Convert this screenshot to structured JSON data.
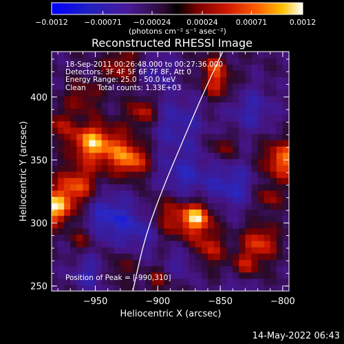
{
  "chart_data": {
    "type": "heatmap",
    "title": "Reconstructed RHESSI Image",
    "xlabel": "Heliocentric X (arcsec)",
    "ylabel": "Heliocentric Y (arcsec)",
    "xlim": [
      -985,
      -795
    ],
    "ylim": [
      246,
      436
    ],
    "x_ticks": [
      -950,
      -900,
      -850,
      -800
    ],
    "y_ticks": [
      250,
      300,
      350,
      400
    ],
    "colorbar": {
      "ticks": [
        "-0.0012",
        "-0.00071",
        "-0.00024",
        "0.00024",
        "0.00071",
        "0.0012"
      ],
      "tick_values": [
        -0.0012,
        -0.00071,
        -0.00024,
        0.00024,
        0.00071,
        0.0012
      ],
      "label": "(photons cm⁻² s⁻¹ asec⁻²)",
      "range": [
        -0.0012,
        0.0012
      ]
    },
    "annotations": [
      "18-Sep-2011 00:26:48.000 to 00:27:36.000",
      "Detectors: 3F 4F 5F 6F 7F 8F, Att 0",
      "Energy Range: 25.0 - 50.0 keV",
      "Clean     Total counts: 1.33E+03"
    ],
    "peak_label": "Position of Peak = [-990,310]",
    "peak_position": [
      -990,
      310
    ],
    "limb_curve": [
      [
        -920,
        246
      ],
      [
        -910,
        290
      ],
      [
        -895,
        330
      ],
      [
        -880,
        365
      ],
      [
        -865,
        400
      ],
      [
        -848,
        436
      ]
    ],
    "blobs": [
      {
        "x": -982,
        "y": 312,
        "r": 14,
        "v": 0.0012
      },
      {
        "x": -965,
        "y": 330,
        "r": 16,
        "v": 0.0009
      },
      {
        "x": -957,
        "y": 365,
        "r": 14,
        "v": 0.00085
      },
      {
        "x": -940,
        "y": 360,
        "r": 18,
        "v": 0.0008
      },
      {
        "x": -920,
        "y": 350,
        "r": 14,
        "v": 0.0009
      },
      {
        "x": -912,
        "y": 388,
        "r": 12,
        "v": 0.00075
      },
      {
        "x": -930,
        "y": 425,
        "r": 14,
        "v": 0.0006
      },
      {
        "x": -960,
        "y": 400,
        "r": 14,
        "v": 0.0005
      },
      {
        "x": -980,
        "y": 378,
        "r": 12,
        "v": 0.00055
      },
      {
        "x": -890,
        "y": 305,
        "r": 20,
        "v": 0.0008
      },
      {
        "x": -868,
        "y": 305,
        "r": 12,
        "v": 0.0011
      },
      {
        "x": -860,
        "y": 280,
        "r": 14,
        "v": 0.0007
      },
      {
        "x": -830,
        "y": 265,
        "r": 12,
        "v": 0.0006
      },
      {
        "x": -818,
        "y": 285,
        "r": 14,
        "v": 0.00085
      },
      {
        "x": -800,
        "y": 350,
        "r": 16,
        "v": 0.001
      },
      {
        "x": -812,
        "y": 320,
        "r": 10,
        "v": 0.0006
      },
      {
        "x": -852,
        "y": 410,
        "r": 12,
        "v": 0.0007
      },
      {
        "x": -848,
        "y": 360,
        "r": 10,
        "v": 0.0005
      },
      {
        "x": -855,
        "y": 425,
        "r": 10,
        "v": 0.00065
      },
      {
        "x": -960,
        "y": 288,
        "r": 10,
        "v": 0.0005
      },
      {
        "x": -930,
        "y": 265,
        "r": 12,
        "v": 0.0004
      },
      {
        "x": -900,
        "y": 255,
        "r": 10,
        "v": 0.00045
      },
      {
        "x": -940,
        "y": 305,
        "r": 20,
        "v": -0.0007
      },
      {
        "x": -910,
        "y": 295,
        "r": 18,
        "v": -0.0006
      },
      {
        "x": -880,
        "y": 335,
        "r": 22,
        "v": -0.0006
      },
      {
        "x": -885,
        "y": 380,
        "r": 22,
        "v": -0.0005
      },
      {
        "x": -840,
        "y": 330,
        "r": 18,
        "v": -0.0006
      },
      {
        "x": -825,
        "y": 390,
        "r": 18,
        "v": -0.0005
      },
      {
        "x": -955,
        "y": 260,
        "r": 14,
        "v": -0.0005
      },
      {
        "x": -880,
        "y": 270,
        "r": 14,
        "v": -0.0004
      },
      {
        "x": -835,
        "y": 250,
        "r": 12,
        "v": -0.0004
      },
      {
        "x": -900,
        "y": 420,
        "r": 14,
        "v": -0.0004
      }
    ]
  },
  "footer": {
    "date_stamp": "14-May-2022 06:43"
  }
}
